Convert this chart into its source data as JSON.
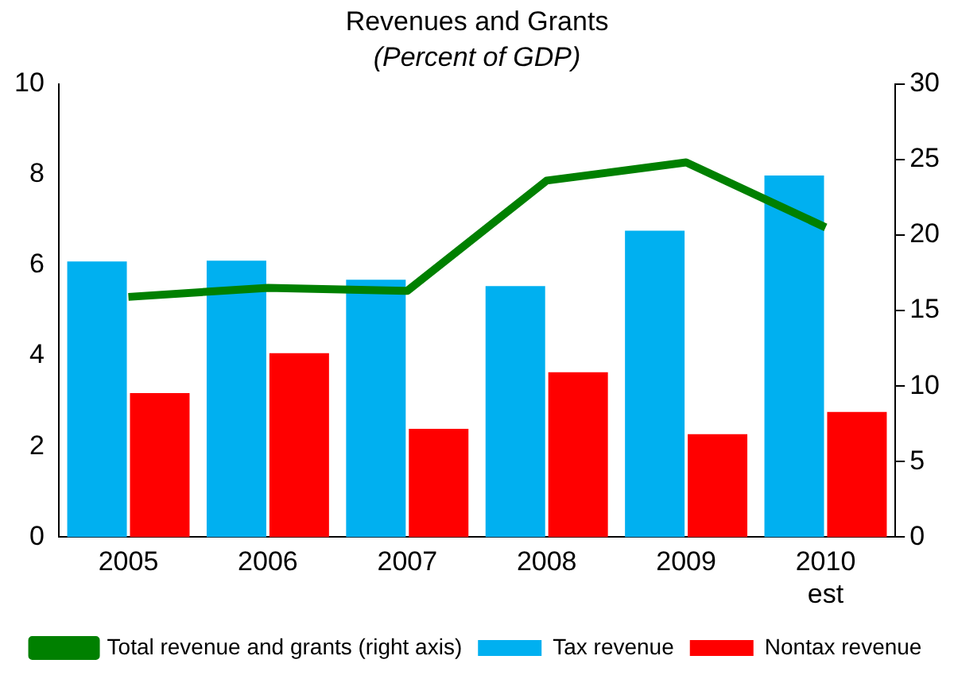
{
  "chart_data": {
    "type": "bar",
    "title": "Revenues and Grants",
    "subtitle": "(Percent of GDP)",
    "categories": [
      "2005",
      "2006",
      "2007",
      "2008",
      "2009",
      "2010 est"
    ],
    "series": [
      {
        "name": "Tax revenue",
        "color": "#00b0f0",
        "values": [
          6.08,
          6.1,
          5.68,
          5.54,
          6.76,
          7.98
        ]
      },
      {
        "name": "Nontax revenue",
        "color": "#ff0000",
        "values": [
          3.18,
          4.06,
          2.39,
          3.64,
          2.27,
          2.76
        ]
      },
      {
        "name": "Total revenue and grants (right axis)",
        "type": "line",
        "axis": "y2",
        "color": "#008000",
        "values": [
          15.9,
          16.5,
          16.3,
          23.6,
          24.8,
          20.5
        ]
      }
    ],
    "ylim": [
      0,
      10
    ],
    "yticks": [
      0,
      2,
      4,
      6,
      8,
      10
    ],
    "y2lim": [
      0,
      30
    ],
    "y2ticks": [
      0,
      5,
      10,
      15,
      20,
      25,
      30
    ],
    "grid": false,
    "legend": "bottom",
    "marker": "none"
  }
}
